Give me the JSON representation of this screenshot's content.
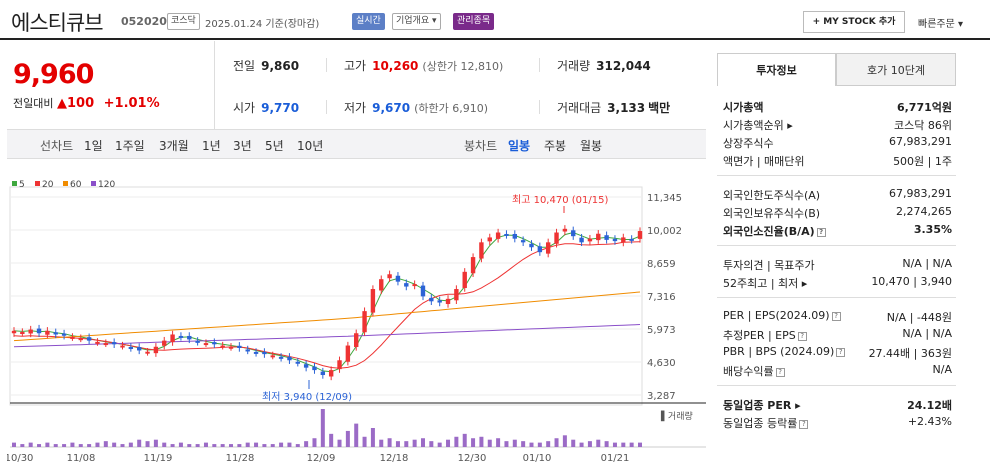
{
  "header": {
    "name": "에스티큐브",
    "code": "052020",
    "market_tag": "코스닥",
    "date_label": "2025.01.24 기준(장마감)",
    "realtime_tag": "실시간",
    "company_tag": "기업개요 ▾",
    "admin_tag": "관리종목",
    "mystock_label": "+ MY STOCK 추가",
    "quick_order": "빠른주문 ▾"
  },
  "price": {
    "current": "9,960",
    "change_label": "전일대비",
    "change_arrow": "▲",
    "change_value": "100",
    "change_pct": "+1.01%"
  },
  "stats": {
    "prev_label": "전일",
    "prev_value": "9,860",
    "high_label": "고가",
    "high_value": "10,260",
    "upper_limit": "(상한가 12,810)",
    "volume_label": "거래량",
    "volume_value": "312,044",
    "open_label": "시가",
    "open_value": "9,770",
    "low_label": "저가",
    "low_value": "9,670",
    "lower_limit": "(하한가 6,910)",
    "amount_label": "거래대금",
    "amount_value": "3,133",
    "amount_unit": "백만"
  },
  "period_bar": {
    "left_label": "선차트",
    "left_items": [
      "1일",
      "1주일",
      "3개월",
      "1년",
      "3년",
      "5년",
      "10년"
    ],
    "right_label": "봉차트",
    "right_items": [
      "일봉",
      "주봉",
      "월봉"
    ],
    "right_active": "일봉"
  },
  "legend": [
    {
      "label": "5",
      "color": "#3ea83e"
    },
    {
      "label": "20",
      "color": "#e33"
    },
    {
      "label": "60",
      "color": "#f08c00"
    },
    {
      "label": "120",
      "color": "#8a4fc9"
    }
  ],
  "tabs": {
    "active": "투자정보",
    "inactive": "호가 10단계"
  },
  "info": {
    "market_cap_label": "시가총액",
    "market_cap_value": "6,771억원",
    "market_rank_label": "시가총액순위 ▸",
    "market_rank_value": "코스닥 86위",
    "shares_label": "상장주식수",
    "shares_value": "67,983,291",
    "par_label": "액면가 | 매매단위",
    "par_value": "500원 | 1주",
    "foreign_limit_label": "외국인한도주식수(A)",
    "foreign_limit_value": "67,983,291",
    "foreign_hold_label": "외국인보유주식수(B)",
    "foreign_hold_value": "2,274,265",
    "foreign_ratio_label": "외국인소진율(B/A)",
    "foreign_ratio_value": "3.35%",
    "opinion_label": "투자의견 | 목표주가",
    "opinion_value": "N/A | N/A",
    "week52_label": "52주최고 | 최저 ▸",
    "week52_value": "10,470 | 3,940",
    "per_label": "PER | EPS(2024.09)",
    "per_value": "N/A | -448원",
    "est_per_label": "추정PER | EPS",
    "est_per_value": "N/A | N/A",
    "pbr_label": "PBR | BPS (2024.09)",
    "pbr_value": "27.44배 | 363원",
    "dividend_label": "배당수익률",
    "dividend_value": "N/A",
    "sector_per_label": "동일업종 PER ▸",
    "sector_per_value": "24.12배",
    "sector_rate_label": "동일업종 등락률",
    "sector_rate_value": "+2.43%"
  },
  "chart_data": {
    "type": "candlestick",
    "y_ticks": [
      "11,345",
      "10,002",
      "8,659",
      "7,316",
      "5,973",
      "4,630",
      "3,287"
    ],
    "ylim": [
      3287,
      11345
    ],
    "x_ticks": [
      "10/30",
      "11/08",
      "11/19",
      "11/28",
      "12/09",
      "12/18",
      "12/30",
      "01/10",
      "01/21"
    ],
    "high_label": "최고 10,470 (01/15)",
    "low_label": "최저 3,940 (12/09)",
    "volume_label": "거래량",
    "closes": [
      5900,
      5850,
      5950,
      5800,
      5900,
      5750,
      5700,
      5650,
      5600,
      5500,
      5450,
      5400,
      5350,
      5300,
      5200,
      5100,
      5050,
      5250,
      5500,
      5750,
      5650,
      5550,
      5450,
      5400,
      5350,
      5300,
      5250,
      5200,
      5100,
      5000,
      4950,
      4900,
      4800,
      4700,
      4600,
      4400,
      4300,
      4100,
      4300,
      4700,
      5300,
      5800,
      6700,
      7600,
      8000,
      8200,
      7900,
      7700,
      7800,
      7300,
      7100,
      7050,
      7200,
      7600,
      8300,
      8900,
      9500,
      9700,
      9900,
      9800,
      9650,
      9500,
      9300,
      9100,
      9500,
      9900,
      10050,
      9750,
      9500,
      9650,
      9850,
      9600,
      9550,
      9700,
      9600,
      9960
    ],
    "volumes": [
      3,
      2,
      3,
      2,
      3,
      2,
      2,
      3,
      2,
      2,
      3,
      4,
      3,
      2,
      3,
      5,
      4,
      5,
      3,
      2,
      3,
      2,
      2,
      3,
      2,
      2,
      2,
      2,
      3,
      3,
      2,
      2,
      3,
      3,
      2,
      4,
      6,
      26,
      9,
      5,
      11,
      16,
      7,
      13,
      5,
      6,
      4,
      4,
      5,
      6,
      4,
      3,
      5,
      7,
      9,
      6,
      7,
      5,
      6,
      4,
      5,
      4,
      3,
      3,
      4,
      6,
      8,
      5,
      3,
      4,
      5,
      4,
      3,
      3,
      3,
      3
    ]
  }
}
